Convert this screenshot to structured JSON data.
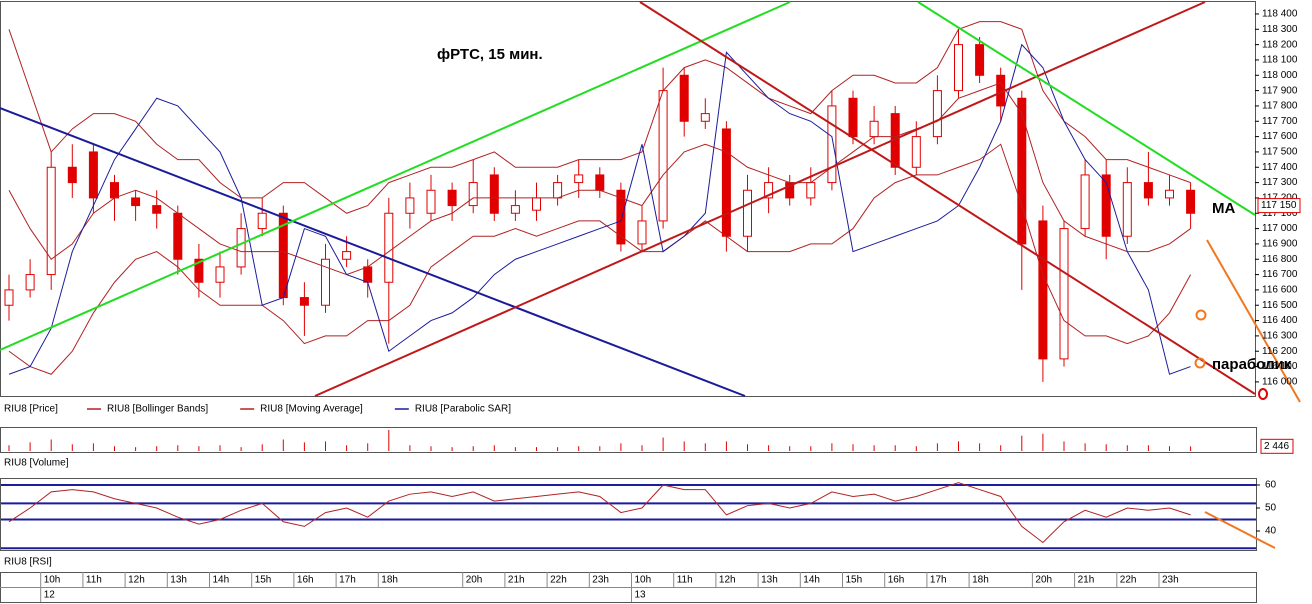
{
  "chart_data": {
    "type": "candlestick",
    "title": "фРТС, 15 мин.",
    "annotations": [
      "MA",
      "параболик"
    ],
    "categories": [
      null,
      null,
      "10h",
      null,
      "11h",
      null,
      "12h",
      null,
      "13h",
      null,
      "14h",
      null,
      "15h",
      null,
      "16h",
      null,
      "17h",
      null,
      "18h",
      null,
      null,
      null,
      "20h",
      null,
      "21h",
      null,
      "22h",
      null,
      "23h",
      null,
      "10h",
      null,
      "11h",
      null,
      "12h",
      null,
      "13h",
      null,
      "14h",
      null,
      "15h",
      null,
      "16h",
      null,
      "17h",
      null,
      "18h",
      null,
      null,
      "20h",
      null,
      "21h",
      null,
      "22h",
      null,
      "23h",
      null
    ],
    "days": [
      null,
      null,
      "12",
      null,
      null,
      null,
      null,
      null,
      null,
      null,
      null,
      null,
      null,
      null,
      null,
      null,
      null,
      null,
      null,
      null,
      null,
      null,
      null,
      null,
      null,
      null,
      null,
      null,
      null,
      null,
      "13",
      null,
      null,
      null,
      null,
      null,
      null,
      null,
      null,
      null,
      null,
      null,
      null,
      null,
      null,
      null,
      null,
      null,
      null,
      null,
      null,
      null,
      null,
      null,
      null,
      null,
      null
    ],
    "ylim": [
      115908,
      118478
    ],
    "yticks": [
      {
        "value": 116000,
        "label": "116 000"
      },
      {
        "value": 116100,
        "label": "116 100"
      },
      {
        "value": 116200,
        "label": "116 200"
      },
      {
        "value": 116300,
        "label": "116 300"
      },
      {
        "value": 116400,
        "label": "116 400"
      },
      {
        "value": 116500,
        "label": "116 500"
      },
      {
        "value": 116600,
        "label": "116 600"
      },
      {
        "value": 116700,
        "label": "116 700"
      },
      {
        "value": 116800,
        "label": "116 800"
      },
      {
        "value": 116900,
        "label": "116 900"
      },
      {
        "value": 117000,
        "label": "117 000"
      },
      {
        "value": 117100,
        "label": "117 100"
      },
      {
        "value": 117200,
        "label": "117 200"
      },
      {
        "value": 117300,
        "label": "117 300"
      },
      {
        "value": 117400,
        "label": "117 400"
      },
      {
        "value": 117500,
        "label": "117 500"
      },
      {
        "value": 117600,
        "label": "117 600"
      },
      {
        "value": 117700,
        "label": "117 700"
      },
      {
        "value": 117800,
        "label": "117 800"
      },
      {
        "value": 117900,
        "label": "117 900"
      },
      {
        "value": 118000,
        "label": "118 000"
      },
      {
        "value": 118100,
        "label": "118 100"
      },
      {
        "value": 118200,
        "label": "118 200"
      },
      {
        "value": 118300,
        "label": "118 300"
      },
      {
        "value": 118400,
        "label": "118 400"
      }
    ],
    "last_price": {
      "value": 117150,
      "label": "117 150"
    },
    "series": [
      {
        "name": "RIU8 [Price]",
        "color": "#e00000",
        "open": [
          116500,
          116600,
          116700,
          117400,
          117500,
          117300,
          117200,
          117150,
          117100,
          116800,
          116650,
          116750,
          117000,
          117100,
          116550,
          116500,
          116800,
          116750,
          116650,
          117100,
          117100,
          117250,
          117150,
          117350,
          117100,
          117120,
          117200,
          117300,
          117350,
          117250,
          116900,
          117050,
          118000,
          117700,
          117650,
          116950,
          117200,
          117300,
          117200,
          117300,
          117850,
          117600,
          117750,
          117400,
          117600,
          117900,
          118200,
          118000,
          117850,
          117050,
          116150,
          117000,
          117350,
          116950,
          117300,
          117200,
          117250
        ],
        "high": [
          116700,
          116800,
          117500,
          117550,
          117550,
          117350,
          117250,
          117250,
          117150,
          116900,
          116850,
          117100,
          117200,
          117150,
          116650,
          116900,
          116950,
          116800,
          117200,
          117300,
          117350,
          117300,
          117450,
          117400,
          117250,
          117300,
          117350,
          117450,
          117400,
          117300,
          117150,
          118050,
          118050,
          117850,
          117700,
          117350,
          117400,
          117350,
          117400,
          117900,
          117900,
          117800,
          117800,
          117700,
          118000,
          118300,
          118250,
          118050,
          117900,
          117150,
          117050,
          117450,
          117450,
          117400,
          117500,
          117350,
          117300
        ],
        "low": [
          116400,
          116550,
          116600,
          117200,
          117100,
          117050,
          117050,
          117000,
          116700,
          116550,
          116550,
          116700,
          116950,
          116500,
          116300,
          116450,
          116750,
          116550,
          116250,
          117000,
          117050,
          117050,
          117100,
          117050,
          117050,
          117050,
          117150,
          117200,
          117200,
          116850,
          116850,
          117000,
          117600,
          117650,
          116850,
          116850,
          117100,
          117150,
          117150,
          117250,
          117550,
          117550,
          117350,
          117350,
          117550,
          117850,
          117950,
          117700,
          116600,
          116000,
          116100,
          116950,
          116800,
          116900,
          117150,
          117150,
          117000
        ],
        "close": [
          116600,
          116700,
          117400,
          117300,
          117200,
          117200,
          117150,
          117100,
          116800,
          116650,
          116750,
          117000,
          117100,
          116550,
          116500,
          116800,
          116850,
          116650,
          117100,
          117200,
          117250,
          117150,
          117300,
          117100,
          117150,
          117200,
          117300,
          117350,
          117250,
          116900,
          117050,
          117900,
          117700,
          117750,
          116950,
          117250,
          117300,
          117200,
          117300,
          117800,
          117600,
          117700,
          117400,
          117600,
          117900,
          118200,
          118000,
          117800,
          116900,
          116150,
          117000,
          117350,
          116950,
          117300,
          117200,
          117250,
          117100
        ]
      },
      {
        "name": "RIU8 [Bollinger Bands]",
        "color": "#b22222",
        "upper": [
          118300,
          117900,
          117500,
          117650,
          117750,
          117750,
          117700,
          117550,
          117450,
          117450,
          117300,
          117200,
          117200,
          117300,
          117300,
          117200,
          117100,
          117150,
          117300,
          117350,
          117400,
          117400,
          117450,
          117500,
          117400,
          117400,
          117400,
          117450,
          117450,
          117450,
          117500,
          117900,
          118050,
          118100,
          118050,
          117950,
          117850,
          117800,
          117750,
          117900,
          118000,
          118000,
          117950,
          117950,
          118050,
          118300,
          118350,
          118350,
          118300,
          117900,
          117700,
          117600,
          117450,
          117450,
          117400,
          117350,
          117300
        ],
        "lower": [
          116200,
          116100,
          116050,
          116200,
          116450,
          116650,
          116800,
          116850,
          116750,
          116600,
          116500,
          116500,
          116500,
          116400,
          116250,
          116300,
          116300,
          116400,
          116400,
          116500,
          116750,
          116850,
          116950,
          116950,
          117000,
          116950,
          117000,
          117050,
          117050,
          116950,
          116850,
          116850,
          116950,
          117050,
          116950,
          116850,
          116850,
          116850,
          116900,
          116900,
          117000,
          117200,
          117300,
          117350,
          117350,
          117400,
          117450,
          117550,
          117150,
          116700,
          116400,
          116300,
          116300,
          116250,
          116300,
          116450,
          116700
        ]
      },
      {
        "name": "RIU8 [Moving Average]",
        "color": "#b22222",
        "values": [
          117250,
          117000,
          116800,
          116900,
          117100,
          117200,
          117250,
          117200,
          117100,
          117000,
          116900,
          116850,
          116850,
          116850,
          116800,
          116750,
          116700,
          116750,
          116850,
          116950,
          117050,
          117100,
          117200,
          117200,
          117200,
          117200,
          117200,
          117250,
          117250,
          117200,
          117150,
          117350,
          117500,
          117550,
          117500,
          117400,
          117350,
          117300,
          117300,
          117400,
          117500,
          117600,
          117600,
          117650,
          117700,
          117850,
          117900,
          117950,
          117750,
          117300,
          117050,
          116950,
          116900,
          116850,
          116850,
          116900,
          117000
        ]
      },
      {
        "name": "RIU8 [Parabolic SAR]",
        "color": "#1c1c9c",
        "values": [
          116050,
          116100,
          116350,
          116850,
          117150,
          117450,
          117650,
          117850,
          117800,
          117650,
          117500,
          117200,
          116500,
          116550,
          117000,
          116950,
          116700,
          116650,
          116200,
          116300,
          116400,
          116450,
          116550,
          116700,
          116800,
          116850,
          116900,
          116950,
          117000,
          117050,
          117550,
          116850,
          116950,
          117100,
          118150,
          118000,
          117850,
          117750,
          117700,
          117600,
          116850,
          116900,
          116950,
          117000,
          117050,
          117150,
          117400,
          117700,
          118200,
          118050,
          117700,
          117450,
          117300,
          116850,
          116600,
          116050,
          116100
        ]
      }
    ],
    "volume": {
      "name": "RIU8 [Volume]",
      "color": "#e00000",
      "ylim": [
        0,
        12000
      ],
      "last": {
        "value": 2446,
        "label": "2 446"
      },
      "values": [
        3000,
        4500,
        6000,
        3500,
        4000,
        2500,
        2000,
        2500,
        3000,
        2500,
        3000,
        2000,
        3500,
        6000,
        4500,
        5000,
        3000,
        4000,
        11000,
        3000,
        2500,
        2000,
        2500,
        3000,
        2000,
        2000,
        2000,
        2500,
        2500,
        4000,
        3000,
        7000,
        5000,
        4000,
        5000,
        3500,
        3000,
        2500,
        2500,
        4000,
        3500,
        3000,
        3000,
        2500,
        4000,
        5000,
        4000,
        3000,
        8000,
        9000,
        5000,
        4000,
        3500,
        3000,
        3000,
        2500,
        2446
      ]
    },
    "rsi": {
      "name": "RIU8 [RSI]",
      "color": "#b22222",
      "ylim": [
        31.3,
        62.6
      ],
      "yticks": [
        40,
        50,
        60
      ],
      "levels": [
        60,
        52,
        45,
        32.5
      ],
      "level_color": "#1c1c9c",
      "values": [
        44,
        50,
        57,
        58,
        57,
        54,
        52,
        50,
        46,
        43,
        45,
        49,
        52,
        44,
        42,
        48,
        50,
        46,
        53,
        56,
        57,
        55,
        57,
        53,
        54,
        55,
        56,
        57,
        55,
        48,
        50,
        60,
        58,
        58,
        47,
        51,
        52,
        50,
        52,
        57,
        55,
        56,
        53,
        55,
        58,
        61,
        58,
        55,
        42,
        35,
        44,
        49,
        46,
        50,
        49,
        50,
        47
      ]
    }
  }
}
